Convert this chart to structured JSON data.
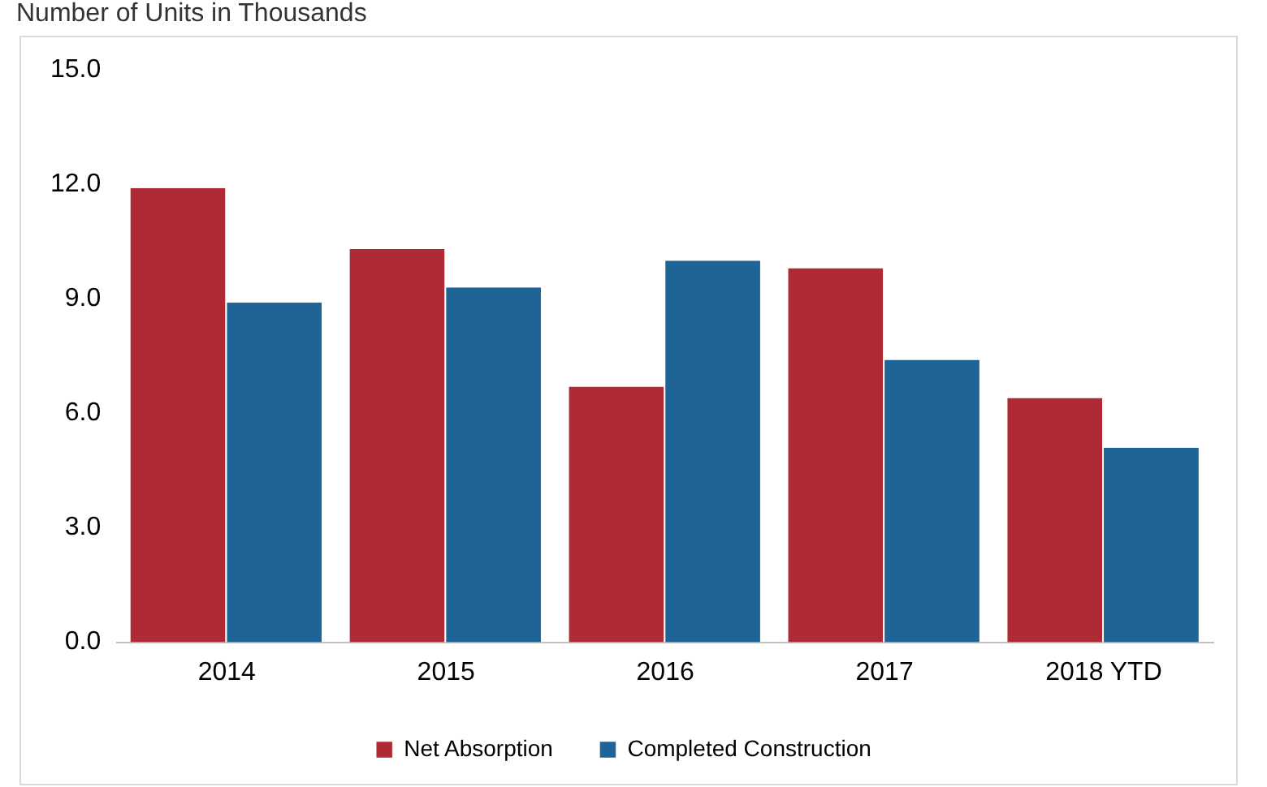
{
  "chart_data": {
    "type": "bar",
    "title": "Number of Units in Thousands",
    "categories": [
      "2014",
      "2015",
      "2016",
      "2017",
      "2018 YTD"
    ],
    "series": [
      {
        "name": "Net Absorption",
        "color": "#ae2b36",
        "values": [
          11.9,
          10.3,
          6.7,
          9.8,
          6.4
        ]
      },
      {
        "name": "Completed Construction",
        "color": "#1f6496",
        "values": [
          8.9,
          9.3,
          10.0,
          7.4,
          5.1
        ]
      }
    ],
    "ylim": [
      0,
      15
    ],
    "yticks": [
      {
        "value": 0,
        "label": "0.0"
      },
      {
        "value": 3,
        "label": "3.0"
      },
      {
        "value": 6,
        "label": "6.0"
      },
      {
        "value": 9,
        "label": "9.0"
      },
      {
        "value": 12,
        "label": "12.0"
      },
      {
        "value": 15,
        "label": "15.0"
      }
    ],
    "grid": false,
    "legend": "bottom"
  }
}
